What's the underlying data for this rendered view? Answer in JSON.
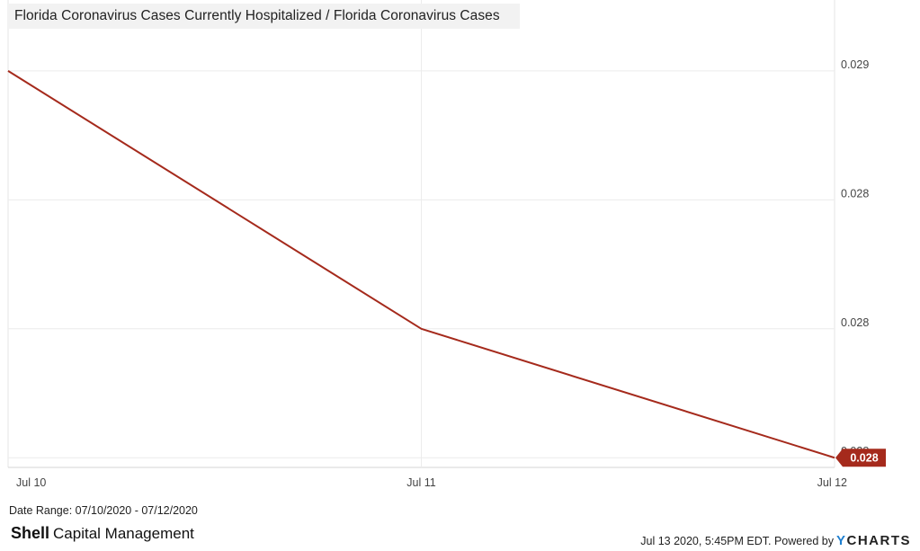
{
  "title": "Florida Coronavirus Cases Currently Hospitalized / Florida Coronavirus Cases",
  "footer": {
    "date_range": "Date Range: 07/10/2020 - 07/12/2020",
    "brand_bold": "Shell",
    "brand_rest": "Capital Management",
    "timestamp": "Jul 13 2020, 5:45PM EDT.",
    "powered_by": "Powered by",
    "ycharts_y": "Y",
    "ycharts_rest": "CHARTS"
  },
  "chart_data": {
    "type": "line",
    "title": "Florida Coronavirus Cases Currently Hospitalized / Florida Coronavirus Cases",
    "x": [
      "Jul 10",
      "Jul 11",
      "Jul 12"
    ],
    "series": [
      {
        "values": [
          0.0289,
          0.0281,
          0.0277
        ],
        "color": "#a52a1c"
      }
    ],
    "y_ticks": [
      {
        "value": 0.0289,
        "label": "0.029"
      },
      {
        "value": 0.0285,
        "label": "0.028"
      },
      {
        "value": 0.0281,
        "label": "0.028"
      },
      {
        "value": 0.0277,
        "label": "0.028"
      }
    ],
    "ylim": [
      0.02767,
      0.02912
    ],
    "last_value_label": "0.028",
    "y_axis_position": "right",
    "grid": true
  }
}
